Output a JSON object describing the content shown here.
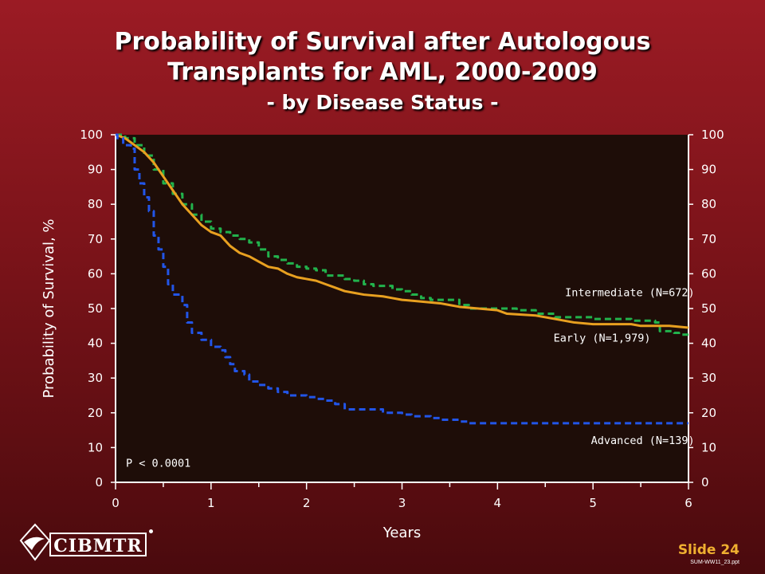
{
  "slide": {
    "title_line1": "Probability of Survival after Autologous",
    "title_line2": "Transplants for AML, 2000-2009",
    "subtitle": "- by Disease Status -",
    "slide_number": "Slide 24",
    "file_ref": "SUM-WW11_23.ppt",
    "logo_text": "CIBMTR"
  },
  "colors": {
    "plot_bg": "#1e0d08",
    "early": "#e8a020",
    "intermediate": "#22b24c",
    "advanced": "#2255e8",
    "axis": "#ffffff"
  },
  "chart_data": {
    "type": "line",
    "xlabel": "Years",
    "ylabel": "Probability of Survival, %",
    "xlim": [
      0,
      6
    ],
    "ylim": [
      0,
      100
    ],
    "x_ticks": [
      "0",
      "1",
      "2",
      "3",
      "4",
      "5",
      "6"
    ],
    "y_ticks": [
      "0",
      "10",
      "20",
      "30",
      "40",
      "50",
      "60",
      "70",
      "80",
      "90",
      "100"
    ],
    "annotation": "P < 0.0001",
    "series": [
      {
        "name": "Intermediate (N=672)",
        "color_key": "intermediate",
        "style": "dashed",
        "points": [
          [
            0,
            100
          ],
          [
            0.1,
            99
          ],
          [
            0.2,
            97
          ],
          [
            0.3,
            94
          ],
          [
            0.4,
            90
          ],
          [
            0.5,
            86
          ],
          [
            0.6,
            83
          ],
          [
            0.7,
            80
          ],
          [
            0.8,
            77
          ],
          [
            0.9,
            75
          ],
          [
            1.0,
            73
          ],
          [
            1.1,
            72
          ],
          [
            1.2,
            71
          ],
          [
            1.3,
            70
          ],
          [
            1.4,
            69
          ],
          [
            1.5,
            67
          ],
          [
            1.6,
            65
          ],
          [
            1.7,
            64
          ],
          [
            1.8,
            63
          ],
          [
            1.9,
            62
          ],
          [
            2.0,
            61.5
          ],
          [
            2.1,
            61
          ],
          [
            2.2,
            59.5
          ],
          [
            2.4,
            58.5
          ],
          [
            2.5,
            58
          ],
          [
            2.6,
            57
          ],
          [
            2.7,
            56.5
          ],
          [
            2.8,
            56.5
          ],
          [
            2.9,
            55.5
          ],
          [
            3.0,
            55
          ],
          [
            3.1,
            54
          ],
          [
            3.2,
            53
          ],
          [
            3.3,
            52.5
          ],
          [
            3.5,
            52.5
          ],
          [
            3.6,
            51
          ],
          [
            3.7,
            50
          ],
          [
            4.0,
            50
          ],
          [
            4.2,
            49.5
          ],
          [
            4.4,
            48.5
          ],
          [
            4.6,
            47.5
          ],
          [
            4.8,
            47.5
          ],
          [
            5.0,
            47
          ],
          [
            5.4,
            46.5
          ],
          [
            5.65,
            46
          ],
          [
            5.7,
            43.5
          ],
          [
            5.85,
            43
          ],
          [
            5.9,
            42.5
          ],
          [
            6.0,
            42.5
          ]
        ]
      },
      {
        "name": "Early (N=1,979)",
        "color_key": "early",
        "style": "solid",
        "points": [
          [
            0,
            100
          ],
          [
            0.1,
            99
          ],
          [
            0.2,
            97
          ],
          [
            0.3,
            95
          ],
          [
            0.4,
            92
          ],
          [
            0.5,
            88
          ],
          [
            0.6,
            84
          ],
          [
            0.7,
            80
          ],
          [
            0.8,
            77
          ],
          [
            0.9,
            74
          ],
          [
            1.0,
            72
          ],
          [
            1.1,
            71
          ],
          [
            1.2,
            68
          ],
          [
            1.3,
            66
          ],
          [
            1.4,
            65
          ],
          [
            1.5,
            63.5
          ],
          [
            1.6,
            62
          ],
          [
            1.7,
            61.5
          ],
          [
            1.8,
            60
          ],
          [
            1.9,
            59
          ],
          [
            2.0,
            58.5
          ],
          [
            2.1,
            58
          ],
          [
            2.2,
            57
          ],
          [
            2.3,
            56
          ],
          [
            2.4,
            55
          ],
          [
            2.5,
            54.5
          ],
          [
            2.6,
            54
          ],
          [
            2.8,
            53.5
          ],
          [
            2.9,
            53
          ],
          [
            3.0,
            52.5
          ],
          [
            3.2,
            52
          ],
          [
            3.4,
            51.5
          ],
          [
            3.5,
            51
          ],
          [
            3.6,
            50.5
          ],
          [
            3.8,
            50
          ],
          [
            4.0,
            49.5
          ],
          [
            4.1,
            48.5
          ],
          [
            4.4,
            48
          ],
          [
            4.6,
            47
          ],
          [
            4.8,
            46
          ],
          [
            5.0,
            45.5
          ],
          [
            5.4,
            45.5
          ],
          [
            5.5,
            45
          ],
          [
            5.8,
            45
          ],
          [
            6.0,
            44.5
          ]
        ]
      },
      {
        "name": "Advanced (N=139)",
        "color_key": "advanced",
        "style": "dashed",
        "points": [
          [
            0,
            100
          ],
          [
            0.02,
            99
          ],
          [
            0.08,
            97
          ],
          [
            0.16,
            96
          ],
          [
            0.2,
            90
          ],
          [
            0.25,
            86
          ],
          [
            0.3,
            82
          ],
          [
            0.35,
            78
          ],
          [
            0.4,
            71
          ],
          [
            0.45,
            67
          ],
          [
            0.5,
            62
          ],
          [
            0.55,
            57
          ],
          [
            0.6,
            54
          ],
          [
            0.7,
            51
          ],
          [
            0.75,
            46
          ],
          [
            0.8,
            43
          ],
          [
            0.9,
            41
          ],
          [
            1.0,
            39
          ],
          [
            1.1,
            38
          ],
          [
            1.15,
            36
          ],
          [
            1.2,
            34
          ],
          [
            1.25,
            32
          ],
          [
            1.35,
            31
          ],
          [
            1.4,
            29
          ],
          [
            1.5,
            28
          ],
          [
            1.6,
            27
          ],
          [
            1.7,
            26
          ],
          [
            1.8,
            25
          ],
          [
            2.0,
            24.5
          ],
          [
            2.1,
            24
          ],
          [
            2.2,
            23.5
          ],
          [
            2.3,
            22.5
          ],
          [
            2.4,
            21
          ],
          [
            2.7,
            21
          ],
          [
            2.8,
            20
          ],
          [
            3.0,
            19.5
          ],
          [
            3.1,
            19
          ],
          [
            3.3,
            18.5
          ],
          [
            3.4,
            18
          ],
          [
            3.6,
            17.5
          ],
          [
            3.7,
            17
          ],
          [
            6.0,
            17
          ]
        ]
      }
    ],
    "series_labels": [
      {
        "text": "Intermediate (N=672)",
        "x": 5.73,
        "y": 53.5
      },
      {
        "text": "Early (N=1,979)",
        "x": 5.27,
        "y": 40.5
      },
      {
        "text": "Advanced (N=139)",
        "x": 5.73,
        "y": 11
      }
    ]
  }
}
